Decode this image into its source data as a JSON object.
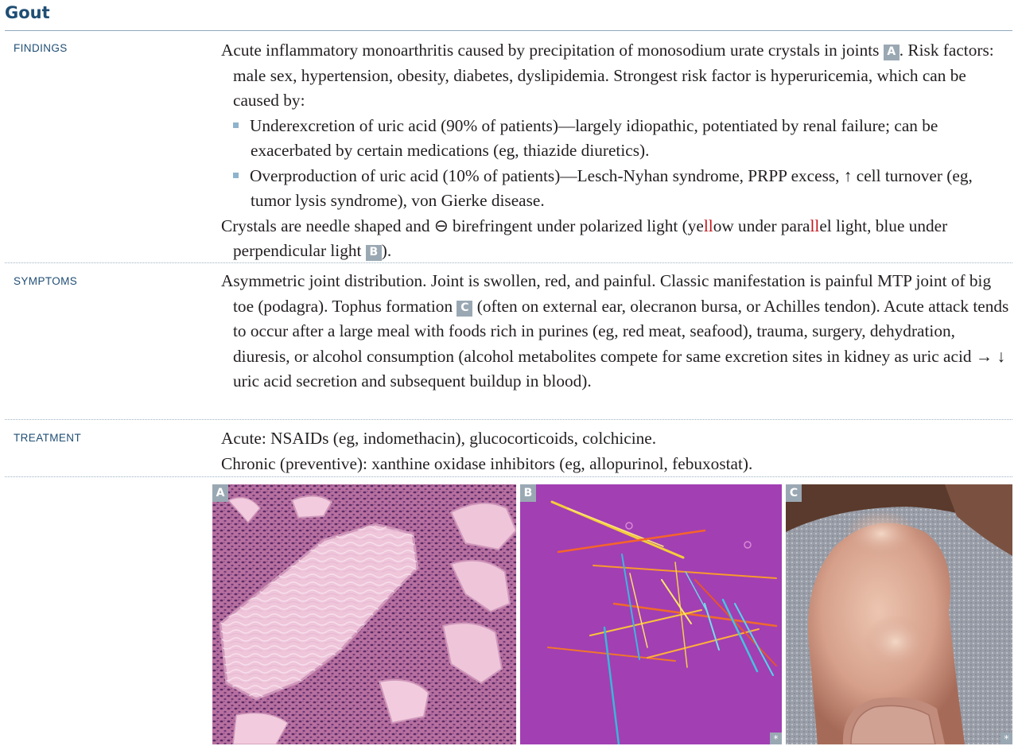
{
  "title": "Gout",
  "rows": {
    "findings": {
      "label": "FINDINGS",
      "p1a": "Acute inflammatory monoarthritis caused by precipitation of monosodium urate crystals in joints ",
      "ref_a": "A",
      "p1b": ". Risk factors: male sex, hypertension, obesity, diabetes, dyslipidemia. Strongest risk factor is hyperuricemia, which can be caused by:",
      "bullet1": "Underexcretion of uric acid (90% of patients)—largely idiopathic, potentiated by renal failure; can be exacerbated by certain medications (eg, thiazide diuretics).",
      "bullet2": "Overproduction of uric acid (10% of patients)—Lesch-Nyhan syndrome, PRPP excess, ↑ cell turnover (eg, tumor lysis syndrome), von Gierke disease.",
      "p2a": "Crystals are needle shaped and ⊖ birefringent under polarized light (ye",
      "p2_red1": "ll",
      "p2b": "ow under para",
      "p2_red2": "ll",
      "p2c": "el light, blue under perpendicular light ",
      "ref_b": "B",
      "p2d": ")."
    },
    "symptoms": {
      "label": "SYMPTOMS",
      "t1": "Asymmetric joint distribution. Joint is swollen, red, and painful. Classic manifestation is painful MTP joint of big toe (podagra). Tophus formation ",
      "ref_c": "C",
      "t2": " (often on external ear, olecranon bursa, or Achilles tendon). Acute attack tends to occur after a large meal with foods rich in purines (eg, red meat, seafood), trauma, surgery, dehydration, diuresis, or alcohol consumption (alcohol metabolites compete for same excretion sites in kidney as uric acid → ↓ uric acid secretion and subsequent buildup in blood)."
    },
    "treatment": {
      "label": "TREATMENT",
      "line1": "Acute: NSAIDs (eg, indomethacin), glucocorticoids, colchicine.",
      "line2": "Chronic (preventive): xanthine oxidase inhibitors (eg, allopurinol, febuxostat)."
    }
  },
  "figures": [
    {
      "tag": "A"
    },
    {
      "tag": "B",
      "mark": "*"
    },
    {
      "tag": "C",
      "mark": "*"
    }
  ],
  "colors": {
    "heading": "#1f4e74",
    "highlight": "#c4161c",
    "badge": "#9aa8b3"
  }
}
